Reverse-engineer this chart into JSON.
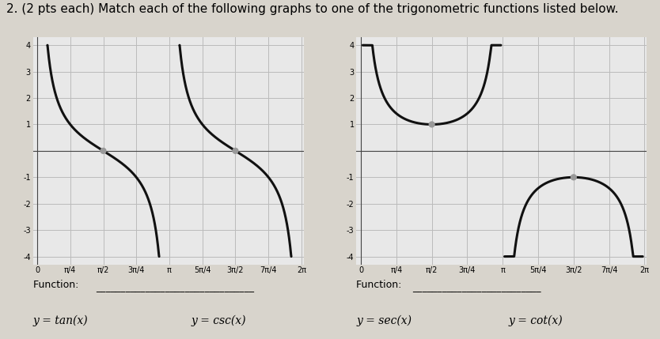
{
  "title": "2. (2 pts each) Match each of the following graphs to one of the trigonometric functions listed below.",
  "title_fontsize": 11,
  "graph_bg": "#e8e8e8",
  "fig_bg": "#d8d4cc",
  "line_color": "#111111",
  "line_width": 2.2,
  "ylim": [
    -4.3,
    4.3
  ],
  "ytick_clip": 4.0,
  "yticks": [
    -4,
    -3,
    -2,
    -1,
    1,
    2,
    3,
    4
  ],
  "xtick_labels": [
    "0",
    "π/4",
    "π/2",
    "3π/4",
    "π",
    "5π/4",
    "3π/2",
    "7π/4",
    "2π"
  ],
  "xtick_values": [
    0,
    0.7854,
    1.5708,
    2.3562,
    3.1416,
    3.927,
    4.7124,
    5.4978,
    6.2832
  ],
  "dot_color": "#999999",
  "dot_size": 35,
  "grid_color": "#bbbbbb",
  "axis_color": "#444444",
  "tick_fontsize": 7,
  "bottom_labels_left": [
    "y = tan(x)",
    "y = csc(x)"
  ],
  "bottom_labels_right": [
    "y = sec(x)",
    "y = cot(x)"
  ],
  "function_label": "Function: "
}
